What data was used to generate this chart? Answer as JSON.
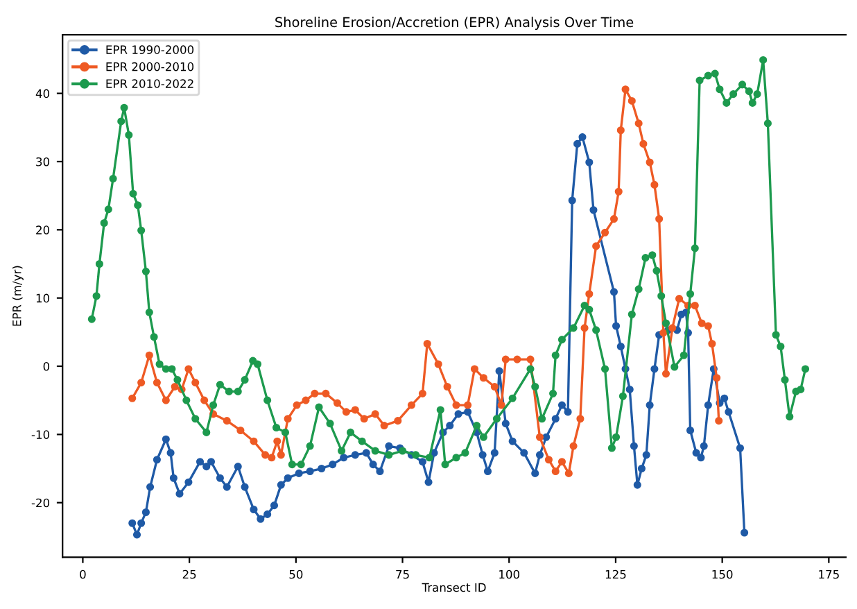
{
  "chart_data": {
    "type": "line",
    "title": "Shoreline Erosion/Accretion (EPR) Analysis Over Time",
    "xlabel": "Transect ID",
    "ylabel": "EPR (m/yr)",
    "xlim": [
      -4.75,
      179
    ],
    "xticks": [
      0,
      25,
      50,
      75,
      100,
      125,
      150,
      175
    ],
    "ylim": [
      -28,
      48.6
    ],
    "yticks": [
      -20,
      -10,
      0,
      10,
      20,
      30,
      40
    ],
    "grid": false,
    "legend": "top left",
    "marker": "circle",
    "line_style": "solid",
    "series": [
      {
        "name": "EPR 1990-2000",
        "color": "#1f5aa6",
        "x": [
          11.6,
          12.7,
          13.7,
          14.8,
          15.8,
          17.4,
          19.5,
          20.6,
          21.3,
          22.7,
          24.8,
          27.5,
          29,
          30.1,
          32.2,
          33.8,
          36.4,
          38,
          40.1,
          41.7,
          43.3,
          44.9,
          46.5,
          48.1,
          50.7,
          53.3,
          56,
          58.6,
          61.2,
          63.9,
          66.5,
          68.1,
          69.7,
          71.8,
          74.4,
          77.1,
          79.7,
          81.1,
          82.4,
          84.5,
          86.1,
          88.1,
          90.3,
          92.4,
          93.8,
          95,
          96.6,
          97.7,
          99.2,
          100.8,
          103.5,
          106.1,
          107.2,
          108.7,
          110.9,
          112.4,
          113.8,
          114.8,
          116,
          117.2,
          118.8,
          119.8,
          124.6,
          125.1,
          126.2,
          127.3,
          128.3,
          129.3,
          130.1,
          131.1,
          132.2,
          133,
          134.1,
          135.2,
          137.3,
          139.4,
          140.4,
          141.5,
          142,
          142.5,
          143.9,
          145,
          145.7,
          146.7,
          148,
          149.4,
          150.5,
          151.5,
          154.2,
          155.2
        ],
        "values": [
          -23,
          -24.7,
          -23,
          -21.4,
          -17.7,
          -13.7,
          -10.7,
          -12.7,
          -16.4,
          -18.7,
          -17,
          -14,
          -14.7,
          -14,
          -16.4,
          -17.7,
          -14.7,
          -17.7,
          -21,
          -22.4,
          -21.7,
          -20.4,
          -17.4,
          -16.4,
          -15.7,
          -15.4,
          -15,
          -14.4,
          -13.4,
          -13,
          -12.7,
          -14.4,
          -15.4,
          -11.7,
          -12,
          -13,
          -14,
          -17,
          -12.7,
          -9.7,
          -8.7,
          -7,
          -6.7,
          -9.7,
          -13,
          -15.4,
          -12.7,
          -0.7,
          -8.4,
          -11,
          -12.7,
          -15.7,
          -13,
          -10.4,
          -7.7,
          -5.7,
          -6.7,
          24.3,
          32.6,
          33.6,
          29.9,
          22.9,
          10.9,
          5.9,
          2.9,
          -0.4,
          -3.4,
          -11.7,
          -17.4,
          -15,
          -13,
          -5.7,
          -0.4,
          4.6,
          5.3,
          5.3,
          7.6,
          7.9,
          4.9,
          -9.4,
          -12.7,
          -13.4,
          -11.7,
          -5.7,
          -0.4,
          -5.4,
          -4.7,
          -6.7,
          -12,
          -24.4
        ]
      },
      {
        "name": "EPR 2000-2010",
        "color": "#ee5a24",
        "x": [
          11.6,
          13.7,
          15.6,
          17.4,
          19.5,
          21.6,
          23.2,
          24.8,
          26.4,
          28.5,
          30.6,
          33.8,
          37,
          40.1,
          42.8,
          44.3,
          45.6,
          46.5,
          48.1,
          50.2,
          52.3,
          54.4,
          57,
          59.7,
          61.8,
          63.9,
          66,
          68.6,
          70.7,
          73.9,
          77.1,
          79.7,
          80.8,
          83.4,
          85.5,
          87.6,
          90.3,
          91.9,
          94,
          96.6,
          98.2,
          99.2,
          101.9,
          105,
          107.2,
          109.3,
          110.9,
          112.4,
          114,
          115.1,
          116.7,
          117.7,
          118.8,
          120.4,
          122.5,
          124.6,
          125.7,
          126.2,
          127.3,
          128.8,
          130.4,
          131.5,
          133,
          134.1,
          135.2,
          136.2,
          136.8,
          138.3,
          139.9,
          142,
          143.6,
          145.2,
          146.7,
          147.6,
          148.7,
          149.2
        ],
        "values": [
          -4.7,
          -2.4,
          1.6,
          -2.4,
          -5,
          -3,
          -3.4,
          -0.4,
          -2.4,
          -5,
          -7,
          -8,
          -9.4,
          -11,
          -13,
          -13.4,
          -11,
          -13,
          -7.7,
          -5.7,
          -5,
          -4,
          -4,
          -5.4,
          -6.7,
          -6.4,
          -7.7,
          -7,
          -8.7,
          -8,
          -5.7,
          -4,
          3.3,
          0.3,
          -3,
          -5.7,
          -5.7,
          -0.4,
          -1.7,
          -3,
          -5.7,
          1,
          1,
          1,
          -10.4,
          -13.7,
          -15.4,
          -14,
          -15.7,
          -11.7,
          -7.7,
          5.6,
          10.6,
          17.6,
          19.6,
          21.6,
          25.6,
          34.6,
          40.6,
          38.9,
          35.6,
          32.6,
          29.9,
          26.6,
          21.6,
          4.9,
          -1.1,
          5.6,
          9.9,
          8.9,
          8.9,
          6.3,
          5.9,
          3.3,
          -1.7,
          -8
        ]
      },
      {
        "name": "EPR 2010-2022",
        "color": "#1d9a4e",
        "x": [
          2.1,
          3.2,
          3.9,
          5,
          6,
          7.1,
          9,
          9.7,
          10.8,
          11.8,
          12.9,
          13.7,
          14.8,
          15.6,
          16.7,
          18,
          19.5,
          20.9,
          22.2,
          24.3,
          26.4,
          29,
          30.6,
          32.2,
          34.3,
          36.4,
          38,
          39.9,
          41,
          43.3,
          45.4,
          47.5,
          49.1,
          51.2,
          53.3,
          55.4,
          58,
          60.7,
          62.8,
          65.5,
          68.6,
          71.8,
          75,
          78.1,
          81.3,
          83.9,
          85,
          87.6,
          89.7,
          92.4,
          94,
          97.1,
          100.8,
          105,
          106.1,
          107.7,
          110.3,
          110.9,
          112.4,
          115.1,
          117.7,
          118.8,
          120.4,
          122.5,
          124.1,
          125.1,
          126.7,
          128.8,
          130.4,
          132,
          133.6,
          134.6,
          135.7,
          136.8,
          138.8,
          141,
          142.5,
          143.6,
          144.7,
          146.7,
          148.3,
          149.4,
          151,
          152.6,
          154.7,
          156.3,
          157.1,
          158.2,
          159.6,
          160.7,
          162.6,
          163.7,
          164.7,
          165.8,
          167.3,
          168.4,
          169.5
        ],
        "values": [
          6.9,
          10.3,
          15,
          21,
          23,
          27.5,
          35.9,
          37.9,
          33.9,
          25.3,
          23.6,
          19.9,
          13.9,
          7.9,
          4.3,
          0.3,
          -0.4,
          -0.4,
          -2,
          -5,
          -7.7,
          -9.7,
          -5.7,
          -2.7,
          -3.7,
          -3.7,
          -2,
          0.8,
          0.3,
          -5,
          -9,
          -9.7,
          -14.4,
          -14.4,
          -11.7,
          -6,
          -8.4,
          -12.4,
          -9.7,
          -11,
          -12.4,
          -13,
          -12.4,
          -13,
          -13.4,
          -6.4,
          -14.4,
          -13.4,
          -12.7,
          -8.7,
          -10.4,
          -7.7,
          -4.7,
          -0.4,
          -3,
          -7.7,
          -4,
          1.6,
          3.9,
          5.6,
          8.9,
          8.3,
          5.3,
          -0.4,
          -12,
          -10.4,
          -4.4,
          7.6,
          11.3,
          15.9,
          16.3,
          14,
          10.3,
          6.3,
          -0.1,
          1.6,
          10.6,
          17.3,
          41.9,
          42.6,
          42.9,
          40.6,
          38.6,
          39.9,
          41.3,
          40.3,
          38.6,
          39.9,
          44.9,
          35.6,
          4.6,
          2.9,
          -2,
          -7.4,
          -3.7,
          -3.4,
          -0.4
        ]
      }
    ]
  }
}
